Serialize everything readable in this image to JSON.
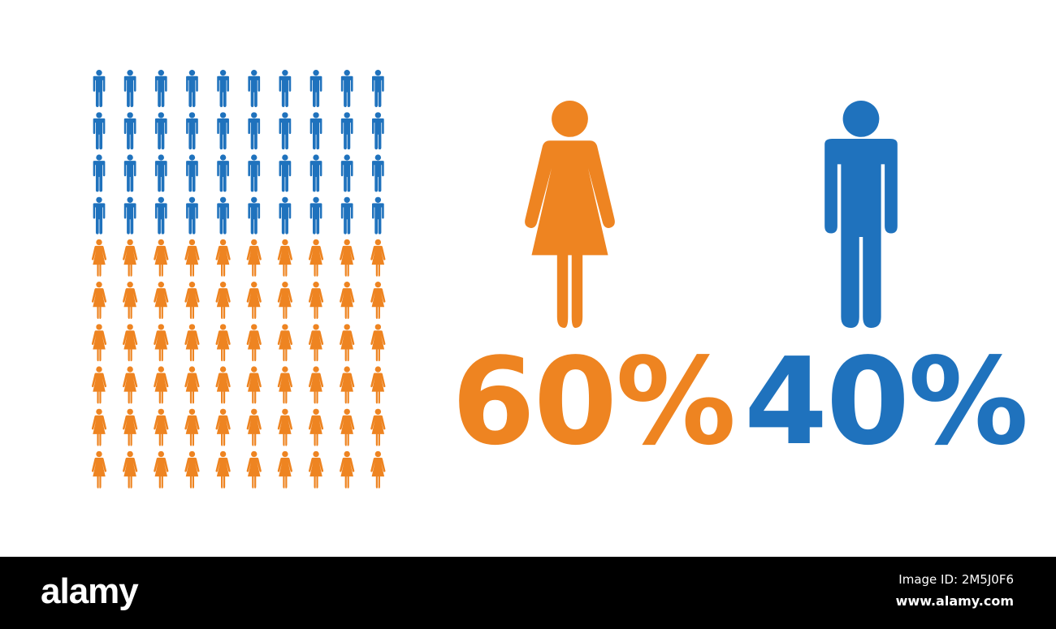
{
  "chart_data": {
    "type": "pictogram",
    "grid": {
      "rows": 10,
      "columns": 10,
      "total_icons": 100
    },
    "series": [
      {
        "name": "women",
        "icon": "woman-icon",
        "value": 60,
        "label": "60%",
        "color": "#EE8421"
      },
      {
        "name": "men",
        "icon": "man-icon",
        "value": 40,
        "label": "40%",
        "color": "#1F72BD"
      }
    ],
    "order": [
      "men",
      "women"
    ]
  },
  "watermark": {
    "logo": "alamy",
    "image_id": "Image ID: 2M5J0F6",
    "site": "www.alamy.com"
  }
}
